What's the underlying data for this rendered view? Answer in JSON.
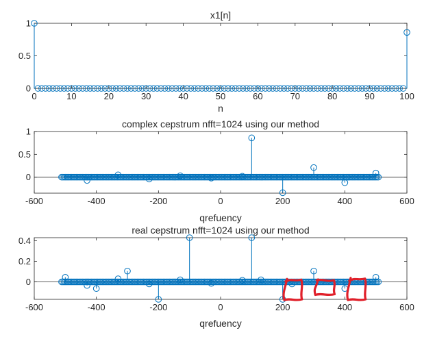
{
  "colors": {
    "stem": "#0072BD",
    "axis": "#262626",
    "annotation": "#E0202A",
    "background": "#FFFFFF"
  },
  "chart_data": [
    {
      "type": "stem",
      "title": "x1[n]",
      "xlabel": "n",
      "ylabel": "",
      "xlim": [
        0,
        100
      ],
      "ylim": [
        0,
        1
      ],
      "xticks": [
        0,
        10,
        20,
        30,
        40,
        50,
        60,
        70,
        80,
        90,
        100
      ],
      "yticks": [
        0,
        0.5,
        1
      ],
      "baseline": 0,
      "marker": "circle",
      "dense": {
        "from": 1,
        "to": 99,
        "step": 1,
        "value": 0
      },
      "points": [
        {
          "x": 0,
          "y": 1
        },
        {
          "x": 100,
          "y": 0.86
        }
      ],
      "grid": false
    },
    {
      "type": "stem",
      "title": "complex cepstrum nfft=1024 using our method",
      "xlabel": "qrefuency",
      "ylabel": "",
      "xlim": [
        -600,
        600
      ],
      "ylim": [
        -0.35,
        1
      ],
      "xticks": [
        -600,
        -400,
        -200,
        0,
        200,
        400,
        600
      ],
      "yticks": [
        0,
        0.5,
        1
      ],
      "baseline": 0,
      "marker": "circle",
      "dense": {
        "from": -512,
        "to": 511,
        "step": 4,
        "value": 0
      },
      "points": [
        {
          "x": 100,
          "y": 0.86
        },
        {
          "x": 200,
          "y": -0.34
        },
        {
          "x": 300,
          "y": 0.21
        },
        {
          "x": 400,
          "y": -0.12
        },
        {
          "x": 500,
          "y": 0.09
        },
        {
          "x": -430,
          "y": -0.07
        },
        {
          "x": -330,
          "y": 0.05
        },
        {
          "x": -230,
          "y": -0.04
        },
        {
          "x": -130,
          "y": 0.03
        },
        {
          "x": -30,
          "y": -0.02
        },
        {
          "x": 70,
          "y": 0.02
        }
      ],
      "grid": false
    },
    {
      "type": "stem",
      "title": "real cepstrum nfft=1024 using our method",
      "xlabel": "qrefuency",
      "ylabel": "",
      "xlim": [
        -600,
        600
      ],
      "ylim": [
        -0.17,
        0.43
      ],
      "xticks": [
        -600,
        -400,
        -200,
        0,
        200,
        400,
        600
      ],
      "yticks": [
        0,
        0.2,
        0.4
      ],
      "baseline": 0,
      "marker": "circle",
      "dense": {
        "from": -512,
        "to": 511,
        "step": 4,
        "value": 0
      },
      "points": [
        {
          "x": -100,
          "y": 0.43
        },
        {
          "x": 100,
          "y": 0.43
        },
        {
          "x": -200,
          "y": -0.17
        },
        {
          "x": 200,
          "y": -0.17
        },
        {
          "x": -300,
          "y": 0.105
        },
        {
          "x": 300,
          "y": 0.105
        },
        {
          "x": -400,
          "y": -0.065
        },
        {
          "x": 400,
          "y": -0.065
        },
        {
          "x": -500,
          "y": 0.045
        },
        {
          "x": 500,
          "y": 0.045
        },
        {
          "x": -430,
          "y": -0.035
        },
        {
          "x": -330,
          "y": 0.03
        },
        {
          "x": -230,
          "y": -0.02
        },
        {
          "x": 230,
          "y": -0.02
        },
        {
          "x": -130,
          "y": 0.02
        },
        {
          "x": 130,
          "y": 0.02
        },
        {
          "x": -30,
          "y": -0.015
        },
        {
          "x": 70,
          "y": 0.015
        }
      ],
      "grid": false
    }
  ],
  "annotations": [
    {
      "type": "hand-drawn-box",
      "x_from": 205,
      "x_to": 260,
      "y_from": -0.17,
      "y_to": 0.015
    },
    {
      "type": "hand-drawn-box",
      "x_from": 305,
      "x_to": 365,
      "y_from": -0.12,
      "y_to": 0.01
    },
    {
      "type": "hand-drawn-box",
      "x_from": 410,
      "x_to": 465,
      "y_from": -0.17,
      "y_to": 0.025
    }
  ]
}
